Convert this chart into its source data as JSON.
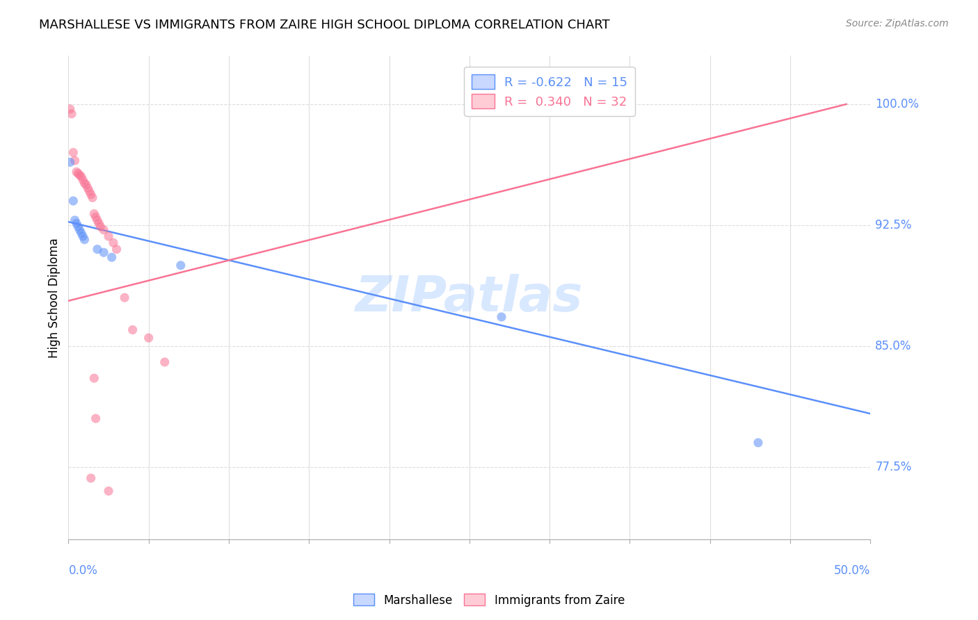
{
  "title": "MARSHALLESE VS IMMIGRANTS FROM ZAIRE HIGH SCHOOL DIPLOMA CORRELATION CHART",
  "source": "Source: ZipAtlas.com",
  "ylabel": "High School Diploma",
  "ytick_labels": [
    "77.5%",
    "85.0%",
    "92.5%",
    "100.0%"
  ],
  "ytick_values": [
    0.775,
    0.85,
    0.925,
    1.0
  ],
  "xlim": [
    0.0,
    0.5
  ],
  "ylim": [
    0.73,
    1.03
  ],
  "blue_color": "#5B8FF9",
  "pink_color": "#F87394",
  "blue_fill": "#C8D8FF",
  "pink_fill": "#FFCCD6",
  "blue_scatter": [
    [
      0.001,
      0.964
    ],
    [
      0.003,
      0.94
    ],
    [
      0.004,
      0.928
    ],
    [
      0.005,
      0.926
    ],
    [
      0.006,
      0.924
    ],
    [
      0.007,
      0.922
    ],
    [
      0.008,
      0.92
    ],
    [
      0.009,
      0.918
    ],
    [
      0.01,
      0.916
    ],
    [
      0.018,
      0.91
    ],
    [
      0.022,
      0.908
    ],
    [
      0.027,
      0.905
    ],
    [
      0.07,
      0.9
    ],
    [
      0.27,
      0.868
    ],
    [
      0.43,
      0.79
    ]
  ],
  "pink_scatter": [
    [
      0.001,
      0.997
    ],
    [
      0.002,
      0.994
    ],
    [
      0.003,
      0.97
    ],
    [
      0.004,
      0.965
    ],
    [
      0.005,
      0.958
    ],
    [
      0.006,
      0.957
    ],
    [
      0.007,
      0.956
    ],
    [
      0.008,
      0.955
    ],
    [
      0.009,
      0.953
    ],
    [
      0.01,
      0.951
    ],
    [
      0.011,
      0.95
    ],
    [
      0.012,
      0.948
    ],
    [
      0.013,
      0.946
    ],
    [
      0.014,
      0.944
    ],
    [
      0.015,
      0.942
    ],
    [
      0.016,
      0.932
    ],
    [
      0.017,
      0.93
    ],
    [
      0.018,
      0.928
    ],
    [
      0.019,
      0.926
    ],
    [
      0.02,
      0.924
    ],
    [
      0.022,
      0.922
    ],
    [
      0.025,
      0.918
    ],
    [
      0.028,
      0.914
    ],
    [
      0.03,
      0.91
    ],
    [
      0.035,
      0.88
    ],
    [
      0.04,
      0.86
    ],
    [
      0.05,
      0.855
    ],
    [
      0.06,
      0.84
    ],
    [
      0.016,
      0.83
    ],
    [
      0.017,
      0.805
    ],
    [
      0.014,
      0.768
    ],
    [
      0.025,
      0.76
    ]
  ],
  "blue_line_x": [
    0.0,
    0.5
  ],
  "blue_line_y": [
    0.927,
    0.808
  ],
  "pink_line_x": [
    0.0,
    0.485
  ],
  "pink_line_y": [
    0.878,
    1.0
  ],
  "background_color": "#FFFFFF",
  "grid_color": "#DDDDDD",
  "watermark": "ZIPatlas",
  "watermark_color": "#AACCFF",
  "axis_label_color": "#5B8FF9",
  "xtick_color": "#5B8FF9"
}
